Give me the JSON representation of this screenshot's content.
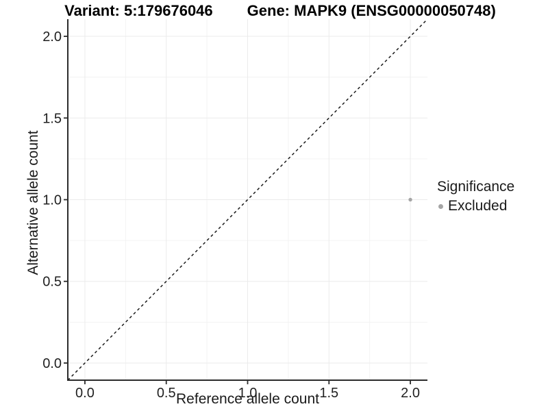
{
  "title": {
    "variant": "Variant: 5:179676046",
    "gene": "Gene: MAPK9 (ENSG00000050748)"
  },
  "colors": {
    "background": "#ffffff",
    "grid_major": "#ebebeb",
    "grid_minor": "#f3f3f3",
    "axis_line": "#2b2b2b",
    "tick_text": "#1f1f1f",
    "reference_line": "#1a1a1a",
    "point": "#a5a5a5"
  },
  "chart_data": {
    "type": "scatter",
    "title": "Variant: 5:179676046   Gene: MAPK9 (ENSG00000050748)",
    "xlabel": "Reference allele count",
    "ylabel": "Alternative allele count",
    "xlim": [
      -0.105,
      2.105
    ],
    "ylim": [
      -0.105,
      2.105
    ],
    "x_ticks": [
      0.0,
      0.5,
      1.0,
      1.5,
      2.0
    ],
    "x_tick_labels": [
      "0.0",
      "0.5",
      "1.0",
      "1.5",
      "2.0"
    ],
    "y_ticks": [
      0.0,
      0.5,
      1.0,
      1.5,
      2.0
    ],
    "y_tick_labels": [
      "0.0",
      "0.5",
      "1.0",
      "1.5",
      "2.0"
    ],
    "x_minor_ticks": [
      0.25,
      0.75,
      1.25,
      1.75
    ],
    "y_minor_ticks": [
      0.25,
      0.75,
      1.25,
      1.75
    ],
    "grid": true,
    "reference_line": {
      "type": "identity",
      "slope": 1,
      "intercept": 0,
      "style": "dashed"
    },
    "series": [
      {
        "name": "Excluded",
        "color": "#a5a5a5",
        "points": [
          [
            2.0,
            1.0
          ]
        ]
      }
    ],
    "legend": {
      "title": "Significance",
      "position": "right",
      "entries": [
        {
          "label": "Excluded",
          "color": "#a5a5a5"
        }
      ]
    }
  }
}
